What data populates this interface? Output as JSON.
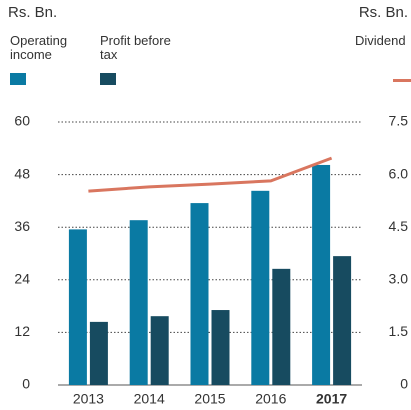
{
  "chart_data": {
    "type": "bar",
    "y_label": "Rs. Bn.",
    "y2_label": "Rs. Bn.",
    "categories": [
      "2013",
      "2014",
      "2015",
      "2016",
      "2017"
    ],
    "highlight_category": 4,
    "series": [
      {
        "name": "Operating income",
        "color": "#0a7aa3",
        "type": "bar",
        "values": [
          35.5,
          37.6,
          41.5,
          44.3,
          50.2
        ]
      },
      {
        "name": "Profit before tax",
        "color": "#174b60",
        "type": "bar",
        "values": [
          14.4,
          15.7,
          17.1,
          26.5,
          29.4
        ]
      },
      {
        "name": "Dividend",
        "color": "#d9765f",
        "type": "line",
        "axis": "y2",
        "values": [
          5.53,
          5.65,
          5.73,
          5.82,
          6.47
        ]
      }
    ],
    "ylim": [
      0,
      60
    ],
    "yticks": [
      0,
      12,
      24,
      36,
      48,
      60
    ],
    "y2lim": [
      0,
      7.5
    ],
    "y2ticks": [
      0,
      1.5,
      {
        "value": 3,
        "label": "3.0"
      },
      4.5,
      {
        "value": 6,
        "label": "6.0"
      },
      7.5
    ],
    "grid": true
  }
}
